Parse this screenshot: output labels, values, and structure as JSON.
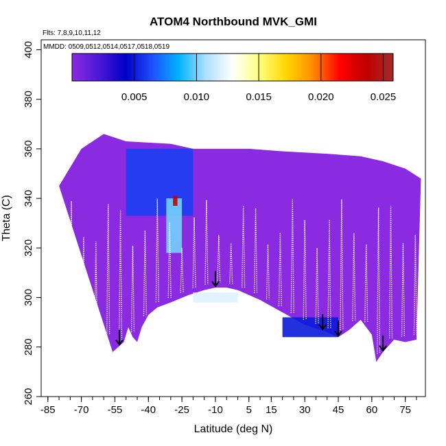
{
  "chart_data": {
    "type": "heatmap",
    "title": "ATOM4 Northbound MVK_GMI",
    "annotations": {
      "flights": "Flts: 7,8,9,10,11,12",
      "dates": "MMDD: 0509,0512,0514,0517,0518,0519"
    },
    "xlabel": "Latitude (deg N)",
    "ylabel": "Theta (C)",
    "xlim": [
      -88,
      84
    ],
    "ylim": [
      260,
      404
    ],
    "x_ticks": [
      -85,
      -70,
      -55,
      -40,
      -25,
      -10,
      5,
      15,
      30,
      45,
      60,
      75
    ],
    "x_tick_labels": [
      "-85",
      "-70",
      "-55",
      "-40",
      "-25",
      "-10",
      "5",
      "15",
      "30",
      "45",
      "60",
      "75"
    ],
    "y_ticks": [
      260,
      280,
      300,
      320,
      340,
      360,
      380,
      400
    ],
    "y_tick_labels": [
      "260",
      "280",
      "300",
      "320",
      "340",
      "360",
      "380",
      "400"
    ],
    "grid": false,
    "colorbar": {
      "placement": "top",
      "min": 0.0,
      "max": 0.0258,
      "ticks": [
        0.005,
        0.01,
        0.015,
        0.02,
        0.025
      ],
      "tick_labels": [
        "0.005",
        "0.010",
        "0.015",
        "0.020",
        "0.025"
      ],
      "colors": [
        "#8a2be2",
        "#4b17d8",
        "#0000c8",
        "#1f4fff",
        "#00b4ff",
        "#b0e0ff",
        "#ffffff",
        "#ffff80",
        "#ffd700",
        "#ff8c00",
        "#ff0000",
        "#c00000",
        "#a52a2a"
      ]
    },
    "background_value_color": "#8a2be2",
    "lower_boundary": [
      [
        -56,
        278
      ],
      [
        -51,
        282
      ],
      [
        -49,
        288
      ],
      [
        -47,
        284
      ],
      [
        -45,
        282
      ],
      [
        -43,
        288
      ],
      [
        -40,
        293
      ],
      [
        -36,
        296
      ],
      [
        -30,
        298
      ],
      [
        -22,
        301
      ],
      [
        -15,
        303
      ],
      [
        -10,
        304
      ],
      [
        -5,
        304
      ],
      [
        0,
        303
      ],
      [
        10,
        299
      ],
      [
        20,
        294
      ],
      [
        30,
        289
      ],
      [
        40,
        286
      ],
      [
        45,
        284
      ],
      [
        50,
        287
      ],
      [
        55,
        291
      ],
      [
        60,
        285
      ],
      [
        62,
        274
      ],
      [
        65,
        278
      ],
      [
        70,
        283
      ],
      [
        75,
        282
      ],
      [
        80,
        283
      ]
    ],
    "upper_boundary": [
      [
        -80,
        345
      ],
      [
        -70,
        360
      ],
      [
        -60,
        366
      ],
      [
        -50,
        363
      ],
      [
        -30,
        362
      ],
      [
        -20,
        360
      ],
      [
        -10,
        360
      ],
      [
        5,
        360
      ],
      [
        20,
        359
      ],
      [
        40,
        358
      ],
      [
        55,
        357
      ],
      [
        65,
        355
      ],
      [
        75,
        352
      ],
      [
        82,
        348
      ]
    ],
    "enhanced_regions": [
      {
        "lat": [
          -50,
          -20
        ],
        "theta": [
          333,
          360
        ],
        "value": 0.006
      },
      {
        "lat": [
          -32,
          -25
        ],
        "theta": [
          318,
          340
        ],
        "value": 0.01
      },
      {
        "lat": [
          -29,
          -27
        ],
        "theta": [
          337,
          341
        ],
        "value": 0.024
      },
      {
        "lat": [
          -20,
          0
        ],
        "theta": [
          298,
          302
        ],
        "value": 0.012
      },
      {
        "lat": [
          20,
          45
        ],
        "theta": [
          284,
          292
        ],
        "value": 0.005
      }
    ],
    "arrows_at_latitude": [
      -53,
      -10,
      38,
      45,
      65
    ]
  }
}
